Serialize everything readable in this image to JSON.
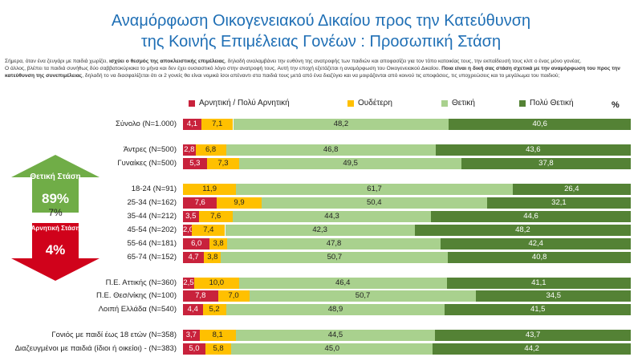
{
  "title_line1": "Αναμόρφωση Οικογενειακού Δικαίου προς την Κατεύθυνση",
  "title_line2": "της Κοινής Επιμέλειας Γονέων : Προσωπική Στάση",
  "intro": {
    "p1a": "Σήμερα, όταν ένα ζευγάρι με παιδιά χωρίζει, ",
    "p1b": "ισχύει ο θεσμός της αποκλειστικής επιμέλειας",
    "p1c": ", δηλαδή αναλαμβάνει την ευθύνη της ανατροφής των παιδιών και αποφασίζει για τον τόπο κατοικίας τους, την εκπαίδευσή τους κλπ ο ένας μόνο γονέας.",
    "p2a": "Ο άλλος, βλέπει τα παιδιά συνήθως δύο σαββατοκύριακα το μήνα και δεν έχει ουσιαστικό λόγο στην ανατροφή τους. Αυτή την εποχή εξετάζεται η αναμόρφωση του Οικογενειακού Δικαίου. ",
    "p2b": "Ποια είναι η δική σας στάση σχετικά με την αναμόρφωση του προς την κατεύθυνση της συνεπιμέλειας",
    "p2c": ", δηλαδή το να διασφαλίζεται ότι οι 2 γονείς θα είναι νομικά ίσοι απέναντι στα παιδιά τους μετά από ένα διαζύγιο και να μοιράζονται από κοινού τις αποφάσεις, τις υποχρεώσεις και το μεγάλωμα του παιδιού;"
  },
  "percent_header": "%",
  "side": {
    "positive_label": "Θετική Στάση",
    "positive_value": "89%",
    "neutral_value": "7%",
    "negative_label": "Αρνητική Στάση",
    "negative_value": "4%"
  },
  "colors": {
    "negative": "#c8223c",
    "neutral": "#ffc000",
    "positive": "#a9d18e",
    "very_positive": "#548235",
    "title": "#1f6fb5",
    "arrow_up": "#70ad47",
    "arrow_down": "#d0021b"
  },
  "chart_data": {
    "type": "bar",
    "orientation": "horizontal-stacked-100",
    "legend_position": "top",
    "series": [
      {
        "name": "Αρνητική / Πολύ Αρνητική",
        "color": "#c8223c"
      },
      {
        "name": "Ουδέτερη",
        "color": "#ffc000"
      },
      {
        "name": "Θετική",
        "color": "#a9d18e"
      },
      {
        "name": "Πολύ Θετική",
        "color": "#548235"
      }
    ],
    "rows": [
      {
        "label": "Σύνολο (N=1.000)",
        "values": [
          4.1,
          7.1,
          48.2,
          40.6
        ],
        "labels": [
          "4,1",
          "7,1",
          "48,2",
          "40,6"
        ]
      },
      {
        "label": "Άντρες (N=500)",
        "values": [
          2.8,
          6.8,
          46.8,
          43.6
        ],
        "labels": [
          "2,8",
          "6,8",
          "46,8",
          "43,6"
        ]
      },
      {
        "label": "Γυναίκες (N=500)",
        "values": [
          5.3,
          7.3,
          49.5,
          37.8
        ],
        "labels": [
          "5,3",
          "7,3",
          "49,5",
          "37,8"
        ]
      },
      {
        "label": "18-24 (N=91)",
        "values": [
          0,
          11.9,
          61.7,
          26.4
        ],
        "labels": [
          "",
          "11,9",
          "61,7",
          "26,4"
        ]
      },
      {
        "label": "25-34 (N=162)",
        "values": [
          7.6,
          9.9,
          50.4,
          32.1
        ],
        "labels": [
          "7,6",
          "9,9",
          "50,4",
          "32,1"
        ]
      },
      {
        "label": "35-44 (N=212)",
        "values": [
          3.5,
          7.6,
          44.3,
          44.6
        ],
        "labels": [
          "3,5",
          "7,6",
          "44,3",
          "44,6"
        ]
      },
      {
        "label": "45-54 (N=202)",
        "values": [
          2.0,
          7.4,
          42.3,
          48.2
        ],
        "labels": [
          "2,0",
          "7,4",
          "42,3",
          "48,2"
        ]
      },
      {
        "label": "55-64 (N=181)",
        "values": [
          6.0,
          3.8,
          47.8,
          42.4
        ],
        "labels": [
          "6,0",
          "3,8",
          "47,8",
          "42,4"
        ]
      },
      {
        "label": "65-74 (N=152)",
        "values": [
          4.7,
          3.8,
          50.7,
          40.8
        ],
        "labels": [
          "4,7",
          "3,8",
          "50,7",
          "40,8"
        ]
      },
      {
        "label": "Π.Ε. Αττικής (N=360)",
        "values": [
          2.5,
          10.0,
          46.4,
          41.1
        ],
        "labels": [
          "2,5",
          "10,0",
          "46,4",
          "41,1"
        ]
      },
      {
        "label": "Π.Ε. Θεσ/νίκης (N=100)",
        "values": [
          7.8,
          7.0,
          50.7,
          34.5
        ],
        "labels": [
          "7,8",
          "7,0",
          "50,7",
          "34,5"
        ]
      },
      {
        "label": "Λοιπή Ελλάδα (N=540)",
        "values": [
          4.4,
          5.2,
          48.9,
          41.5
        ],
        "labels": [
          "4,4",
          "5,2",
          "48,9",
          "41,5"
        ]
      },
      {
        "label": "Γονιός με παιδί έως 18 ετών (N=358)",
        "values": [
          3.7,
          8.1,
          44.5,
          43.7
        ],
        "labels": [
          "3,7",
          "8,1",
          "44,5",
          "43,7"
        ]
      },
      {
        "label": "Διαζευγμένοι με παιδιά (ίδιοι ή οικείοι) - (N=383)",
        "values": [
          5.0,
          5.8,
          45.0,
          44.2
        ],
        "labels": [
          "5,0",
          "5,8",
          "45,0",
          "44,2"
        ]
      }
    ]
  }
}
